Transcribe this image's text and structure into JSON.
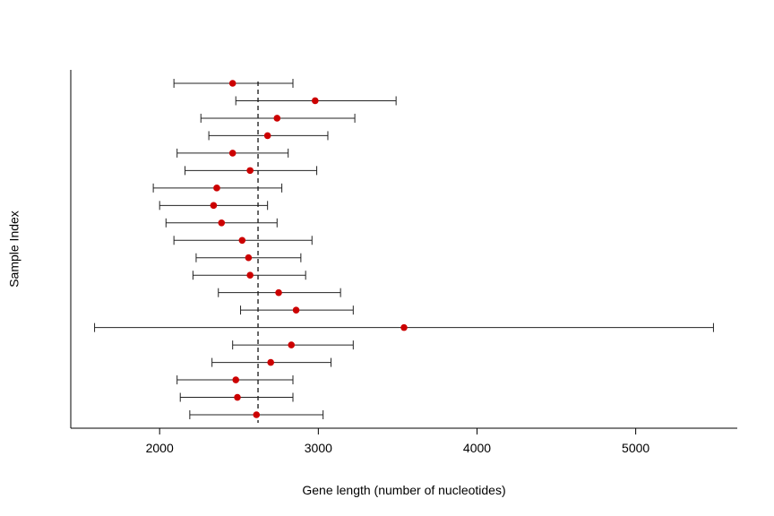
{
  "chart_data": {
    "type": "errorbar",
    "xlabel": "Gene length (number of nucleotides)",
    "ylabel": "Sample Index",
    "xlim": [
      1440,
      5640
    ],
    "x_ticks": [
      2000,
      3000,
      4000,
      5000
    ],
    "reference_line_x": 2620,
    "point_color": "#cc0000",
    "grid": false,
    "points": [
      {
        "mean": 2610,
        "lower": 2190,
        "upper": 3030
      },
      {
        "mean": 2490,
        "lower": 2130,
        "upper": 2840
      },
      {
        "mean": 2480,
        "lower": 2110,
        "upper": 2840
      },
      {
        "mean": 2700,
        "lower": 2330,
        "upper": 3080
      },
      {
        "mean": 2830,
        "lower": 2460,
        "upper": 3220
      },
      {
        "mean": 3540,
        "lower": 1590,
        "upper": 5490
      },
      {
        "mean": 2860,
        "lower": 2510,
        "upper": 3220
      },
      {
        "mean": 2750,
        "lower": 2370,
        "upper": 3140
      },
      {
        "mean": 2570,
        "lower": 2210,
        "upper": 2920
      },
      {
        "mean": 2560,
        "lower": 2230,
        "upper": 2890
      },
      {
        "mean": 2520,
        "lower": 2090,
        "upper": 2960
      },
      {
        "mean": 2390,
        "lower": 2040,
        "upper": 2740
      },
      {
        "mean": 2340,
        "lower": 2000,
        "upper": 2680
      },
      {
        "mean": 2360,
        "lower": 1960,
        "upper": 2770
      },
      {
        "mean": 2570,
        "lower": 2160,
        "upper": 2990
      },
      {
        "mean": 2460,
        "lower": 2110,
        "upper": 2810
      },
      {
        "mean": 2680,
        "lower": 2310,
        "upper": 3060
      },
      {
        "mean": 2740,
        "lower": 2260,
        "upper": 3230
      },
      {
        "mean": 2980,
        "lower": 2480,
        "upper": 3490
      },
      {
        "mean": 2460,
        "lower": 2090,
        "upper": 2840
      }
    ]
  }
}
